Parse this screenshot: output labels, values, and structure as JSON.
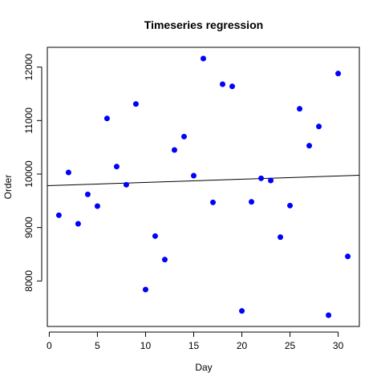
{
  "chart_data": {
    "type": "scatter",
    "title": "Timeseries regression",
    "xlabel": "Day",
    "ylabel": "Order",
    "xlim": [
      -0.2,
      32.2
    ],
    "ylim": [
      7150,
      12370
    ],
    "x_ticks": [
      0,
      5,
      10,
      15,
      20,
      25,
      30
    ],
    "y_ticks": [
      8000,
      9000,
      10000,
      11000,
      12000
    ],
    "grid": false,
    "point_color": "#0000ff",
    "line_color": "#000000",
    "points": [
      {
        "x": 1,
        "y": 9230
      },
      {
        "x": 2,
        "y": 10030
      },
      {
        "x": 3,
        "y": 9070
      },
      {
        "x": 4,
        "y": 9620
      },
      {
        "x": 5,
        "y": 9400
      },
      {
        "x": 6,
        "y": 11040
      },
      {
        "x": 7,
        "y": 10140
      },
      {
        "x": 8,
        "y": 9800
      },
      {
        "x": 9,
        "y": 11310
      },
      {
        "x": 10,
        "y": 7840
      },
      {
        "x": 11,
        "y": 8840
      },
      {
        "x": 12,
        "y": 8400
      },
      {
        "x": 13,
        "y": 10450
      },
      {
        "x": 14,
        "y": 10700
      },
      {
        "x": 15,
        "y": 9970
      },
      {
        "x": 16,
        "y": 12160
      },
      {
        "x": 17,
        "y": 9470
      },
      {
        "x": 18,
        "y": 11680
      },
      {
        "x": 19,
        "y": 11640
      },
      {
        "x": 20,
        "y": 7440
      },
      {
        "x": 21,
        "y": 9480
      },
      {
        "x": 22,
        "y": 9920
      },
      {
        "x": 23,
        "y": 9880
      },
      {
        "x": 24,
        "y": 8820
      },
      {
        "x": 25,
        "y": 9410
      },
      {
        "x": 26,
        "y": 11220
      },
      {
        "x": 27,
        "y": 10530
      },
      {
        "x": 28,
        "y": 10890
      },
      {
        "x": 29,
        "y": 7360
      },
      {
        "x": 30,
        "y": 11880
      },
      {
        "x": 31,
        "y": 8460
      }
    ],
    "regression": {
      "intercept": 9783,
      "slope": 6.05
    }
  }
}
